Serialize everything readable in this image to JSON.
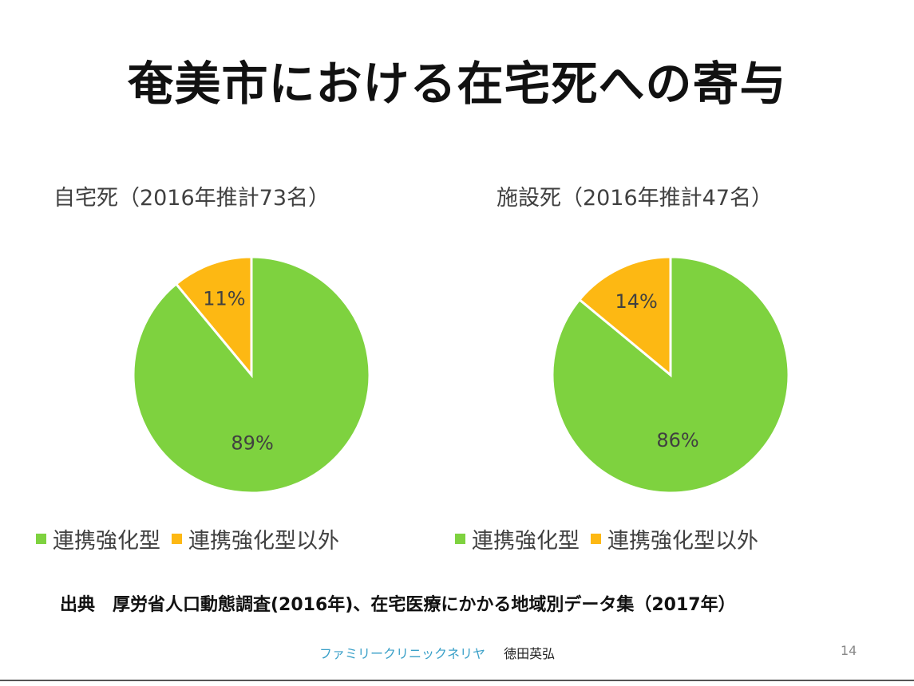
{
  "slide": {
    "title": "奄美市における在宅死への寄与",
    "source": "出典　厚労省人口動態調査(2016年)、在宅医療にかかる地域別データ集（2017年）",
    "footer": {
      "clinic": "ファミリークリニックネリヤ",
      "author": "徳田英弘",
      "page": "14"
    }
  },
  "colors": {
    "green": "#7ED23F",
    "orange": "#FDB813",
    "slice_border": "#ffffff",
    "label": "#404040"
  },
  "chart_data": [
    {
      "type": "pie",
      "title": "自宅死（2016年推計73名）",
      "categories": [
        "連携強化型",
        "連携強化型以外"
      ],
      "values": [
        89,
        11
      ],
      "labels": [
        "89%",
        "11%"
      ],
      "legend_position": "bottom"
    },
    {
      "type": "pie",
      "title": "施設死（2016年推計47名）",
      "categories": [
        "連携強化型",
        "連携強化型以外"
      ],
      "values": [
        86,
        14
      ],
      "labels": [
        "86%",
        "14%"
      ],
      "legend_position": "bottom"
    }
  ]
}
